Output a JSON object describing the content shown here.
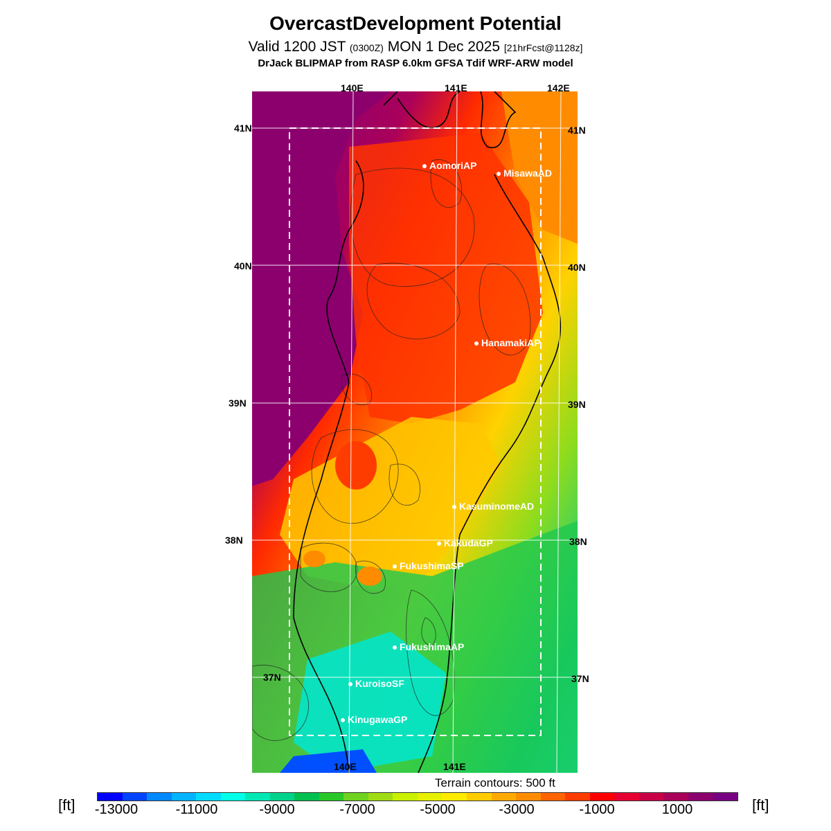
{
  "title": "OvercastDevelopment Potential",
  "valid_line": {
    "prefix": "Valid 1200 JST",
    "utc": "(0300Z)",
    "date": "MON 1 Dec 2025",
    "fcst": "[21hrFcst@1128z]"
  },
  "source_line": "DrJack BLIPMAP from RASP 6.0km GFSA Tdif WRF-ARW model",
  "map": {
    "lat_labels": [
      "41N",
      "40N",
      "39N",
      "38N",
      "37N"
    ],
    "lon_labels_top": [
      "140E",
      "141E",
      "142E"
    ],
    "lon_labels_bottom": [
      "140E",
      "141E"
    ],
    "stations": [
      {
        "name": "AomoriAP"
      },
      {
        "name": "MisawaAD"
      },
      {
        "name": "HanamakiAP"
      },
      {
        "name": "KasuminomeAD"
      },
      {
        "name": "KakudaGP"
      },
      {
        "name": "FukushimaSP"
      },
      {
        "name": "FukushimaAP"
      },
      {
        "name": "KuroisoSF"
      },
      {
        "name": "KinugawaGP"
      }
    ],
    "terrain_note": "Terrain contours: 500 ft"
  },
  "colorbar": {
    "unit_left": "[ft]",
    "unit_right": "[ft]",
    "tick_labels": [
      "-13000",
      "-11000",
      "-9000",
      "-7000",
      "-5000",
      "-3000",
      "-1000",
      "1000"
    ],
    "colors": [
      "#0000ff",
      "#0044ff",
      "#0088ff",
      "#00b4ff",
      "#00dcff",
      "#00ffe6",
      "#00e8b4",
      "#00d28c",
      "#00c050",
      "#28c828",
      "#6ed21e",
      "#a0dc14",
      "#c8f000",
      "#e6f000",
      "#ffeb00",
      "#ffcc00",
      "#ffaa00",
      "#ff8c00",
      "#ff6400",
      "#ff3c00",
      "#ff0000",
      "#e60032",
      "#c80046",
      "#aa005a",
      "#8c006e",
      "#780082"
    ]
  }
}
